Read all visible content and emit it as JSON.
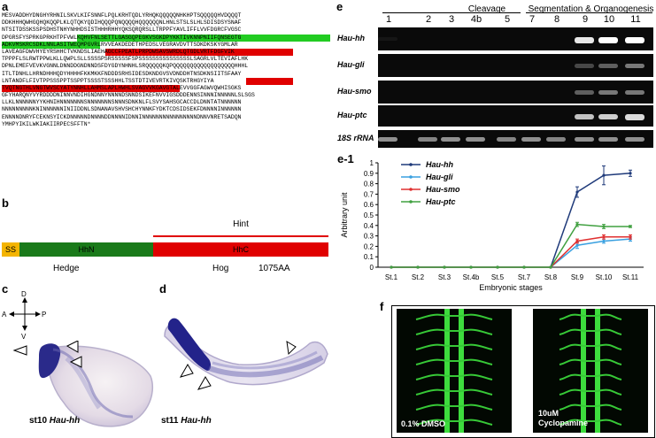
{
  "panels": {
    "a": "a",
    "b": "b",
    "c": "c",
    "d": "d",
    "e": "e",
    "e1": "e-1",
    "f": "f"
  },
  "sequence_lines": [
    "MESVADDHYDNGHYRHNILSKVLKIFSNNFLPQLKRHTQDLYRHQKQQQQQNHKHPTSQQQQQHVDQQQT",
    "DDKHHHQWHGQHQKQQPLKLQTQKYQDIHQQQPQNQQQQHQQQQQQNLHNLSTSLSLHLSDISDSYSNAF",
    "NTSITDSSKSSPSDHSTNHYNHHDSISTHHHRHHYQKSQRQRSLLTRPPFYAVLIFFLVVFDGRCFVGSC",
    "DPGRSFYSPRKGPRKHTPFVWLKQHVFNLSETTLGASGQPEGKVSGKDPYKKTIVKNNPNIIFQNSEGTG",
    "ADKVMSKRCSDKLNNLASITWEQMPGVRLRVVEAKDEDETHPEDSLVEGRAVDVTTSDKDKSKYGMLAR",
    "LAVEAGFDWVHYEYRSHHCTVKNDSLIAEHAGCCFPEATLPRPDWSAVSWRDLQTGDLVRTFDGFVIK",
    "TPPPFLSLRWTPPWLKLLQWPLSLLSSSSPSRSSSSSFSPSSSSSSSSSSSSSSSLSAGRLVLTEVIAFLHK",
    "DPNLEMEFVEVKVGNNLDNNDDGNDNNDSFDYGDYNHNHLSRQQQQQKQPQQQQQQQQQQQQQQQQQQHHHL",
    "ITLTDNHLLHRNDHHHQDYHHHHFKKMKKFNDDDSRHSIDESDKNDGVSVDNDDHTNSDKNSIITSFAAY",
    "LNTANDFLFIVTPPSSSPPTSSPPTSSSSTSSSHHLTSSTDTIVEVRTKIVQSKTRHGYIYA",
    "TVQTNGTHLVNGTWVSCYATYNNHLLAHMSLAPLHWHLSVAGVVKGAVGTALEVVGGFAGWVQWHISGKS",
    "GFYHARQNYVYRDDDDNINNVNDIHGNDNNYNNNNDSNNDSIKEFNVVIGSDDDENNSINNNINNNNNLSLSGS",
    "LLKLNNNNNNYYKHNIHNNNNNNNSNNNNNNNSNNNSDNKNLFLSVYSAHSGCACCDLDNNTATNNNNNN",
    "NNNNNNNNNKNINNNNNNINIIDDNLSDNANAVSHVSHCHYNNKFYDKTCDSIDSEKFDNNNNINNNNNN",
    "ENNNNDNRYFCEKNSYICKDNNNNNDNNNNDDNNNNIDNNINNNNNNNNNNNNNNNNDNNVNRETSADQN",
    "YMHPYIKILWKIAKIIRPECSFFTN*"
  ],
  "schematic": {
    "ss": "SS",
    "hhn": "HhN",
    "hhc": "HhC",
    "hint": "Hint",
    "hedge": "Hedge",
    "hog": "Hog",
    "length": "1075AA",
    "colors": {
      "ss": "#f4b400",
      "hhn": "#1a7a1a",
      "hhc": "#e00000",
      "hint_line": "#e00000"
    }
  },
  "compass": {
    "d": "D",
    "v": "V",
    "a": "A",
    "p": "P"
  },
  "embryo_c": {
    "stage": "st10",
    "gene": "Hau-hh"
  },
  "embryo_d": {
    "stage": "st11",
    "gene": "Hau-hh"
  },
  "gel": {
    "group_cleavage": "Cleavage",
    "group_seg": "Segmentation & Organogenesis",
    "lanes": [
      "1",
      "2",
      "3",
      "4b",
      "5",
      "7",
      "8",
      "9",
      "10",
      "11"
    ],
    "genes": [
      "Hau-hh",
      "Hau-gli",
      "Hau-smo",
      "Hau-ptc",
      "18S rRNA"
    ],
    "band_intensity": [
      [
        0.05,
        0,
        0,
        0,
        0,
        0,
        0,
        0.9,
        1.0,
        1.0
      ],
      [
        0,
        0,
        0,
        0,
        0,
        0,
        0,
        0.25,
        0.35,
        0.45
      ],
      [
        0,
        0,
        0,
        0,
        0,
        0,
        0,
        0.35,
        0.45,
        0.45
      ],
      [
        0,
        0,
        0,
        0,
        0,
        0,
        0,
        0.75,
        0.8,
        0.85
      ],
      [
        0.55,
        0.5,
        0.55,
        0.55,
        0.5,
        0.55,
        0.5,
        0.55,
        0.55,
        0.55
      ]
    ]
  },
  "chart_data": {
    "type": "line",
    "categories": [
      "St.1",
      "St.2",
      "St.3",
      "St.4b",
      "St.5",
      "St.7",
      "St.8",
      "St.9",
      "St.10",
      "St.11"
    ],
    "ylabel": "Arbitrary unit",
    "xlabel": "Embryonic stages",
    "ylim": [
      0,
      1
    ],
    "yticks": [
      "0",
      "0.1",
      "0.2",
      "0.3",
      "0.4",
      "0.5",
      "0.6",
      "0.7",
      "0.8",
      "0.9",
      "1"
    ],
    "legend_position": "top-left",
    "series": [
      {
        "name": "Hau-hh",
        "color": "#1f3a7a",
        "values": [
          0,
          0,
          0,
          0,
          0,
          0,
          0,
          0.72,
          0.88,
          0.9
        ],
        "err": [
          0,
          0,
          0,
          0,
          0,
          0,
          0,
          0.05,
          0.09,
          0.03
        ]
      },
      {
        "name": "Hau-gli",
        "color": "#3aa0e0",
        "values": [
          0,
          0,
          0,
          0,
          0,
          0,
          0,
          0.21,
          0.25,
          0.27
        ],
        "err": [
          0,
          0,
          0,
          0,
          0,
          0,
          0,
          0.03,
          0.02,
          0.02
        ]
      },
      {
        "name": "Hau-smo",
        "color": "#e03030",
        "values": [
          0,
          0,
          0,
          0,
          0,
          0,
          0,
          0.25,
          0.29,
          0.29
        ],
        "err": [
          0,
          0,
          0,
          0,
          0,
          0,
          0,
          0.02,
          0.02,
          0.02
        ]
      },
      {
        "name": "Hau-ptc",
        "color": "#40a040",
        "values": [
          0,
          0,
          0,
          0,
          0,
          0,
          0,
          0.41,
          0.39,
          0.39
        ],
        "err": [
          0,
          0,
          0,
          0,
          0,
          0,
          0,
          0.02,
          0.02,
          0.01
        ]
      }
    ]
  },
  "panel_f": {
    "left_label": "0.1% DMSO",
    "right_label_1": "10uM",
    "right_label_2": "Cyclopamine"
  }
}
